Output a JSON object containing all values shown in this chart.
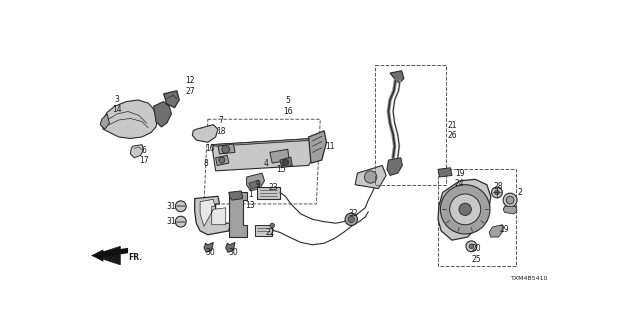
{
  "bg_color": "#ffffff",
  "fig_width": 6.4,
  "fig_height": 3.2,
  "dpi": 100,
  "part_number": "TXM4B5410",
  "text_color": "#1a1a1a",
  "label_fontsize": 5.5,
  "line_color": "#2a2a2a",
  "fill_light": "#c8c8c8",
  "fill_dark": "#707070",
  "fill_mid": "#a0a0a0"
}
